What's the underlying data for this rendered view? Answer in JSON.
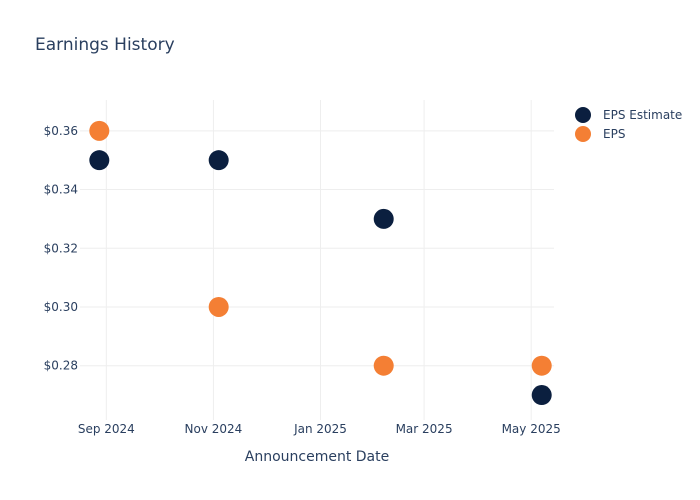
{
  "chart_data": {
    "type": "scatter",
    "title": "Earnings History",
    "xlabel": "Announcement Date",
    "ylabel": "",
    "x_axis": {
      "type": "date",
      "ticks": [
        {
          "date": "2024-09-01",
          "label": "Sep 2024"
        },
        {
          "date": "2024-11-01",
          "label": "Nov 2024"
        },
        {
          "date": "2025-01-01",
          "label": "Jan 2025"
        },
        {
          "date": "2025-03-01",
          "label": "Mar 2025"
        },
        {
          "date": "2025-05-01",
          "label": "May 2025"
        }
      ],
      "range": [
        "2024-08-17",
        "2025-05-14"
      ]
    },
    "y_axis": {
      "ticks": [
        0.28,
        0.3,
        0.32,
        0.34,
        0.36
      ],
      "tick_prefix": "$",
      "range": [
        0.2615,
        0.3705
      ]
    },
    "grid": true,
    "legend_position": "top-right",
    "series": [
      {
        "name": "EPS Estimate",
        "color": "#0b1f3f",
        "points": [
          {
            "x": "2024-08-28",
            "y": 0.35
          },
          {
            "x": "2024-11-04",
            "y": 0.35
          },
          {
            "x": "2025-02-06",
            "y": 0.33
          },
          {
            "x": "2025-05-07",
            "y": 0.27
          }
        ]
      },
      {
        "name": "EPS",
        "color": "#f47f34",
        "points": [
          {
            "x": "2024-08-28",
            "y": 0.36
          },
          {
            "x": "2024-11-04",
            "y": 0.3
          },
          {
            "x": "2025-02-06",
            "y": 0.28
          },
          {
            "x": "2025-05-07",
            "y": 0.28
          }
        ]
      }
    ]
  }
}
